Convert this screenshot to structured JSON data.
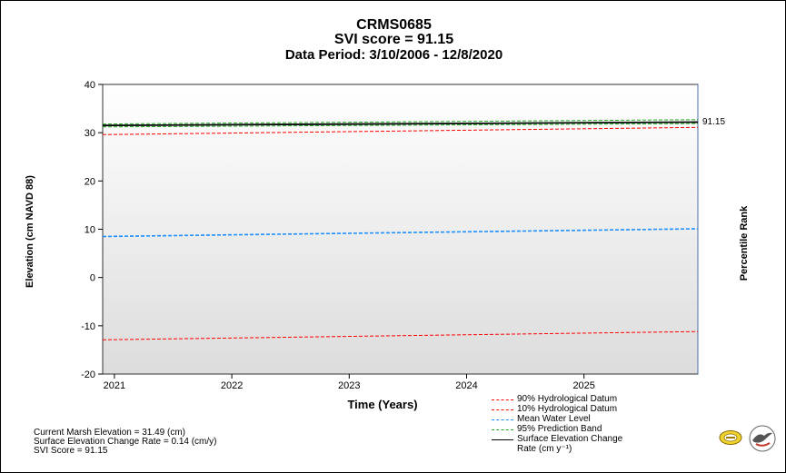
{
  "title": {
    "line1": "CRMS0685",
    "line2": "SVI score = 91.15",
    "line3": "Data Period: 3/10/2006 - 12/8/2020"
  },
  "y_axis_label": "Elevation (cm NAVD 88)",
  "right_axis_label": "Percentile Rank",
  "x_axis_label": "Time (Years)",
  "percentile_marker": "91.15",
  "stats": {
    "marsh_elevation": "Current Marsh Elevation = 31.49 (cm)",
    "change_rate": "Surface Elevation Change Rate = 0.14 (cm/y)",
    "svi_score": "SVI Score = 91.15"
  },
  "legend": [
    {
      "label": "90% Hydrological Datum",
      "color": "#ff0000",
      "style": "dashed"
    },
    {
      "label": "10% Hydrological Datum",
      "color": "#ff0000",
      "style": "dashed"
    },
    {
      "label": "Mean Water Level",
      "color": "#1e90ff",
      "style": "dashed"
    },
    {
      "label": "95% Prediction Band",
      "color": "#22aa22",
      "style": "dashed"
    },
    {
      "label": "Surface Elevation Change",
      "label2": "Rate (cm y⁻¹)",
      "color": "#000000",
      "style": "solid"
    }
  ],
  "logos": [
    "crms-logo-icon",
    "bird-logo-icon"
  ],
  "chart_data": {
    "type": "line",
    "xlim": [
      2020.9,
      2025.97
    ],
    "ylim": [
      -20,
      40
    ],
    "x_ticks": [
      2021,
      2022,
      2023,
      2024,
      2025
    ],
    "y_ticks": [
      -20,
      -10,
      0,
      10,
      20,
      30,
      40
    ],
    "grid": false,
    "legend_position": "bottom-right",
    "series": [
      {
        "name": "90% Hydrological Datum",
        "color": "#ff0000",
        "dash": true,
        "width": 1,
        "x": [
          2020.9,
          2025.97
        ],
        "y": [
          29.6,
          31.1
        ]
      },
      {
        "name": "10% Hydrological Datum",
        "color": "#ff0000",
        "dash": true,
        "width": 1,
        "x": [
          2020.9,
          2025.97
        ],
        "y": [
          -12.9,
          -11.2
        ]
      },
      {
        "name": "Mean Water Level",
        "color": "#1e90ff",
        "dash": true,
        "width": 1.6,
        "x": [
          2020.9,
          2025.97
        ],
        "y": [
          8.5,
          10.1
        ]
      },
      {
        "name": "95% Prediction Band",
        "color": "#22aa22",
        "dash": true,
        "width": 1,
        "x": [
          2020.9,
          2025.97
        ],
        "y": [
          31.8,
          32.7
        ]
      },
      {
        "name": "95% Prediction Band",
        "color": "#22aa22",
        "dash": true,
        "width": 1,
        "x": [
          2020.9,
          2025.97
        ],
        "y": [
          31.2,
          31.9
        ]
      },
      {
        "name": "Surface Elevation Change Rate (cm y⁻¹)",
        "color": "#000000",
        "dash": false,
        "width": 1.8,
        "x": [
          2020.9,
          2025.97
        ],
        "y": [
          31.49,
          32.2
        ]
      }
    ]
  }
}
